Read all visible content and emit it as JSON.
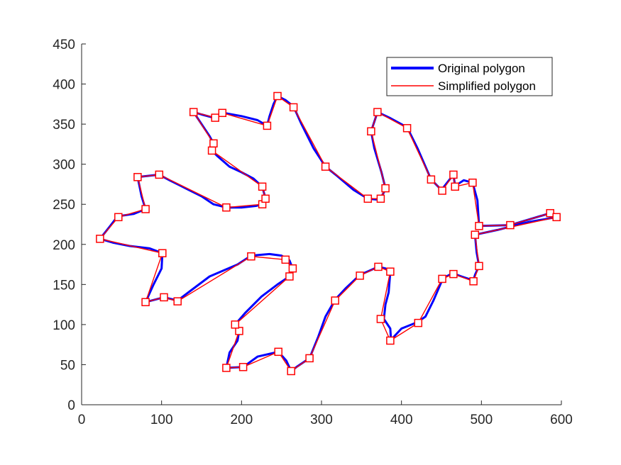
{
  "chart_data": {
    "type": "line",
    "title": "",
    "xlabel": "",
    "ylabel": "",
    "xlim": [
      0,
      600
    ],
    "ylim": [
      0,
      450
    ],
    "xticks": [
      0,
      100,
      200,
      300,
      400,
      500,
      600
    ],
    "yticks": [
      0,
      50,
      100,
      150,
      200,
      250,
      300,
      350,
      400,
      450
    ],
    "grid": false,
    "legend": {
      "position": "top-right",
      "entries": [
        "Original polygon",
        "Simplified polygon"
      ]
    },
    "series": [
      {
        "name": "Original polygon",
        "color": "#0000ff",
        "points": [
          [
            140,
            365
          ],
          [
            150,
            362
          ],
          [
            165,
            358
          ],
          [
            178,
            364
          ],
          [
            200,
            360
          ],
          [
            220,
            355
          ],
          [
            232,
            348
          ],
          [
            235,
            360
          ],
          [
            240,
            375
          ],
          [
            245,
            385
          ],
          [
            255,
            380
          ],
          [
            265,
            372
          ],
          [
            275,
            350
          ],
          [
            290,
            320
          ],
          [
            305,
            297
          ],
          [
            320,
            285
          ],
          [
            340,
            268
          ],
          [
            358,
            257
          ],
          [
            368,
            256
          ],
          [
            374,
            258
          ],
          [
            378,
            265
          ],
          [
            380,
            270
          ],
          [
            375,
            290
          ],
          [
            366,
            320
          ],
          [
            362,
            341
          ],
          [
            370,
            365
          ],
          [
            385,
            358
          ],
          [
            407,
            346
          ],
          [
            420,
            320
          ],
          [
            437,
            281
          ],
          [
            450,
            268
          ],
          [
            465,
            287
          ],
          [
            467,
            273
          ],
          [
            478,
            280
          ],
          [
            489,
            277
          ],
          [
            495,
            255
          ],
          [
            497,
            223
          ],
          [
            536,
            224
          ],
          [
            586,
            239
          ],
          [
            594,
            234
          ],
          [
            560,
            228
          ],
          [
            520,
            218
          ],
          [
            492,
            212
          ],
          [
            494,
            190
          ],
          [
            497,
            173
          ],
          [
            492,
            162
          ],
          [
            490,
            155
          ],
          [
            475,
            160
          ],
          [
            464,
            164
          ],
          [
            452,
            158
          ],
          [
            440,
            130
          ],
          [
            430,
            110
          ],
          [
            420,
            103
          ],
          [
            400,
            95
          ],
          [
            387,
            81
          ],
          [
            386,
            95
          ],
          [
            378,
            107
          ],
          [
            380,
            125
          ],
          [
            384,
            140
          ],
          [
            386,
            165
          ],
          [
            380,
            170
          ],
          [
            371,
            172
          ],
          [
            355,
            165
          ],
          [
            348,
            162
          ],
          [
            330,
            145
          ],
          [
            317,
            131
          ],
          [
            305,
            110
          ],
          [
            296,
            85
          ],
          [
            285,
            58
          ],
          [
            270,
            48
          ],
          [
            262,
            42
          ],
          [
            256,
            55
          ],
          [
            246,
            66
          ],
          [
            220,
            60
          ],
          [
            202,
            47
          ],
          [
            181,
            46
          ],
          [
            185,
            65
          ],
          [
            195,
            80
          ],
          [
            197,
            92
          ],
          [
            192,
            100
          ],
          [
            205,
            115
          ],
          [
            225,
            135
          ],
          [
            245,
            150
          ],
          [
            260,
            160
          ],
          [
            264,
            170
          ],
          [
            260,
            180
          ],
          [
            250,
            186
          ],
          [
            235,
            188
          ],
          [
            212,
            186
          ],
          [
            195,
            175
          ],
          [
            160,
            160
          ],
          [
            140,
            145
          ],
          [
            120,
            130
          ],
          [
            103,
            134
          ],
          [
            80,
            128
          ],
          [
            90,
            150
          ],
          [
            100,
            170
          ],
          [
            101,
            189
          ],
          [
            85,
            195
          ],
          [
            60,
            198
          ],
          [
            40,
            202
          ],
          [
            23,
            207
          ],
          [
            35,
            222
          ],
          [
            45,
            235
          ],
          [
            65,
            238
          ],
          [
            80,
            244
          ],
          [
            75,
            260
          ],
          [
            70,
            284
          ],
          [
            97,
            287
          ],
          [
            110,
            280
          ],
          [
            130,
            270
          ],
          [
            150,
            260
          ],
          [
            165,
            250
          ],
          [
            181,
            246
          ],
          [
            200,
            246
          ],
          [
            218,
            248
          ],
          [
            226,
            250
          ],
          [
            230,
            257
          ],
          [
            226,
            272
          ],
          [
            215,
            282
          ],
          [
            200,
            290
          ],
          [
            185,
            297
          ],
          [
            170,
            310
          ],
          [
            163,
            317
          ],
          [
            165,
            326
          ],
          [
            160,
            335
          ],
          [
            150,
            350
          ],
          [
            140,
            365
          ]
        ]
      },
      {
        "name": "Simplified polygon",
        "color": "#ff0000",
        "points": [
          [
            140,
            365
          ],
          [
            167,
            358
          ],
          [
            176,
            364
          ],
          [
            232,
            348
          ],
          [
            245,
            385
          ],
          [
            265,
            371
          ],
          [
            305,
            297
          ],
          [
            358,
            257
          ],
          [
            374,
            257
          ],
          [
            380,
            270
          ],
          [
            362,
            341
          ],
          [
            370,
            365
          ],
          [
            407,
            345
          ],
          [
            437,
            281
          ],
          [
            451,
            267
          ],
          [
            465,
            287
          ],
          [
            467,
            272
          ],
          [
            489,
            277
          ],
          [
            497,
            223
          ],
          [
            536,
            224
          ],
          [
            586,
            239
          ],
          [
            594,
            234
          ],
          [
            492,
            212
          ],
          [
            497,
            173
          ],
          [
            490,
            154
          ],
          [
            465,
            163
          ],
          [
            451,
            157
          ],
          [
            421,
            102
          ],
          [
            386,
            80
          ],
          [
            374,
            107
          ],
          [
            386,
            166
          ],
          [
            371,
            172
          ],
          [
            348,
            161
          ],
          [
            317,
            130
          ],
          [
            285,
            58
          ],
          [
            262,
            42
          ],
          [
            246,
            66
          ],
          [
            202,
            47
          ],
          [
            181,
            46
          ],
          [
            197,
            92
          ],
          [
            192,
            100
          ],
          [
            260,
            160
          ],
          [
            264,
            170
          ],
          [
            255,
            181
          ],
          [
            212,
            185
          ],
          [
            120,
            129
          ],
          [
            103,
            134
          ],
          [
            80,
            128
          ],
          [
            101,
            189
          ],
          [
            23,
            207
          ],
          [
            46,
            234
          ],
          [
            80,
            244
          ],
          [
            70,
            284
          ],
          [
            97,
            287
          ],
          [
            181,
            246
          ],
          [
            226,
            250
          ],
          [
            230,
            257
          ],
          [
            226,
            272
          ],
          [
            163,
            317
          ],
          [
            165,
            326
          ],
          [
            140,
            365
          ]
        ],
        "markers": "square"
      }
    ]
  }
}
